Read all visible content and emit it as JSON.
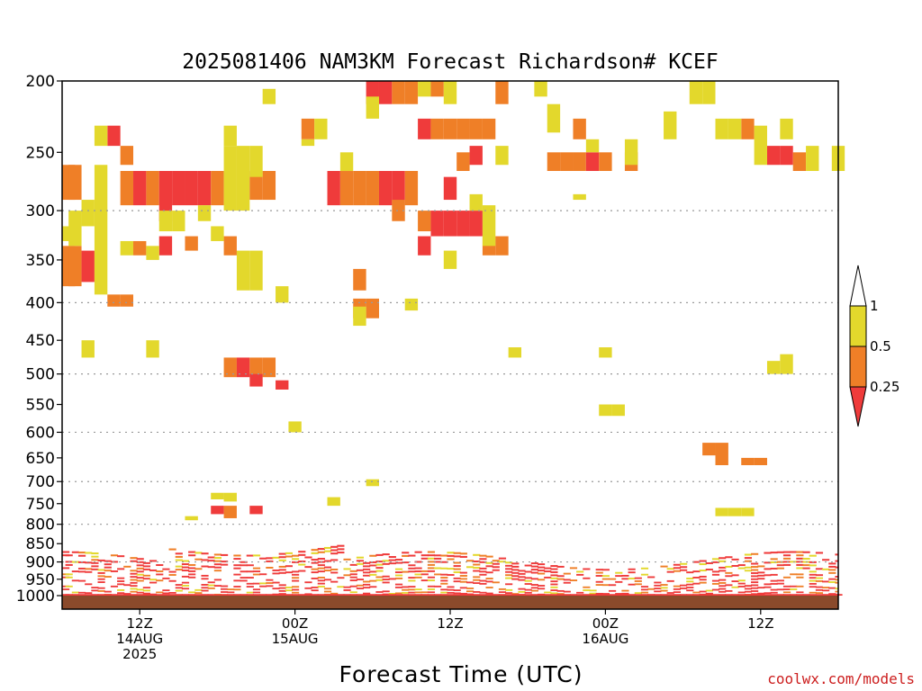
{
  "chart_data": {
    "type": "heatmap",
    "title": "2025081406 NAM3KM Forecast Richardson# KCEF",
    "xlabel": "Forecast Time (UTC)",
    "ylabel": "",
    "y_axis": {
      "scale": "log",
      "reversed": true,
      "lim": [
        1000,
        200
      ],
      "ticks": [
        200,
        250,
        300,
        350,
        400,
        450,
        500,
        550,
        600,
        650,
        700,
        750,
        800,
        850,
        900,
        950,
        1000
      ],
      "dotted_grid": [
        300,
        400,
        500,
        600,
        700,
        800,
        900
      ]
    },
    "x_axis": {
      "lim_hours": [
        6,
        66
      ],
      "ticks": [
        {
          "hour": 12,
          "labels": [
            "12Z",
            "14AUG",
            "2025"
          ]
        },
        {
          "hour": 24,
          "labels": [
            "00Z",
            "15AUG"
          ]
        },
        {
          "hour": 36,
          "labels": [
            "12Z"
          ]
        },
        {
          "hour": 48,
          "labels": [
            "00Z",
            "16AUG"
          ]
        },
        {
          "hour": 60,
          "labels": [
            "12Z"
          ]
        }
      ]
    },
    "colorbar": {
      "labels": [
        "1",
        "0.5",
        "0.25"
      ],
      "bins": [
        {
          "range": "0.5-1",
          "color": "#e3d82c"
        },
        {
          "range": "0.25-0.5",
          "color": "#ef7f27"
        },
        {
          "range": "<0.25",
          "color": "#ef3b3b"
        }
      ],
      "extend": "both"
    },
    "ground_color": "#8b4a2b",
    "cells": [
      {
        "t": 6,
        "p": [
          260,
          290
        ],
        "v": "orange"
      },
      {
        "t": 7,
        "p": [
          260,
          290
        ],
        "v": "orange"
      },
      {
        "t": 6,
        "p": [
          335,
          380
        ],
        "v": "orange"
      },
      {
        "t": 7,
        "p": [
          335,
          380
        ],
        "v": "orange"
      },
      {
        "t": 8,
        "p": [
          340,
          375
        ],
        "v": "red"
      },
      {
        "t": 9,
        "p": [
          260,
          390
        ],
        "v": "yellow"
      },
      {
        "t": 10,
        "p": [
          230,
          245
        ],
        "v": "red"
      },
      {
        "t": 10,
        "p": [
          390,
          405
        ],
        "v": "orange"
      },
      {
        "t": 11,
        "p": [
          245,
          260
        ],
        "v": "orange"
      },
      {
        "t": 11,
        "p": [
          390,
          405
        ],
        "v": "orange"
      },
      {
        "t": 11,
        "p": [
          265,
          295
        ],
        "v": "orange"
      },
      {
        "t": 12,
        "p": [
          265,
          295
        ],
        "v": "red"
      },
      {
        "t": 13,
        "p": [
          265,
          295
        ],
        "v": "orange"
      },
      {
        "t": 14,
        "p": [
          265,
          310
        ],
        "v": "red"
      },
      {
        "t": 15,
        "p": [
          265,
          295
        ],
        "v": "red"
      },
      {
        "t": 16,
        "p": [
          265,
          295
        ],
        "v": "red"
      },
      {
        "t": 17,
        "p": [
          265,
          295
        ],
        "v": "red"
      },
      {
        "t": 18,
        "p": [
          265,
          295
        ],
        "v": "orange"
      },
      {
        "t": 19,
        "p": [
          245,
          300
        ],
        "v": "yellow"
      },
      {
        "t": 20,
        "p": [
          245,
          300
        ],
        "v": "yellow"
      },
      {
        "t": 21,
        "p": [
          265,
          290
        ],
        "v": "orange"
      },
      {
        "t": 22,
        "p": [
          265,
          290
        ],
        "v": "orange"
      },
      {
        "t": 14,
        "p": [
          325,
          345
        ],
        "v": "red"
      },
      {
        "t": 16,
        "p": [
          325,
          340
        ],
        "v": "orange"
      },
      {
        "t": 19,
        "p": [
          325,
          345
        ],
        "v": "orange"
      },
      {
        "t": 20,
        "p": [
          340,
          385
        ],
        "v": "yellow"
      },
      {
        "t": 21,
        "p": [
          340,
          385
        ],
        "v": "yellow"
      },
      {
        "t": 19,
        "p": [
          475,
          505
        ],
        "v": "orange"
      },
      {
        "t": 20,
        "p": [
          475,
          505
        ],
        "v": "red"
      },
      {
        "t": 21,
        "p": [
          475,
          505
        ],
        "v": "orange"
      },
      {
        "t": 22,
        "p": [
          475,
          505
        ],
        "v": "orange"
      },
      {
        "t": 21,
        "p": [
          500,
          520
        ],
        "v": "red"
      },
      {
        "t": 23,
        "p": [
          510,
          525
        ],
        "v": "red"
      },
      {
        "t": 27,
        "p": [
          265,
          295
        ],
        "v": "red"
      },
      {
        "t": 28,
        "p": [
          265,
          295
        ],
        "v": "orange"
      },
      {
        "t": 29,
        "p": [
          265,
          295
        ],
        "v": "orange"
      },
      {
        "t": 30,
        "p": [
          265,
          295
        ],
        "v": "orange"
      },
      {
        "t": 31,
        "p": [
          265,
          295
        ],
        "v": "red"
      },
      {
        "t": 32,
        "p": [
          265,
          295
        ],
        "v": "red"
      },
      {
        "t": 33,
        "p": [
          265,
          295
        ],
        "v": "orange"
      },
      {
        "t": 29,
        "p": [
          360,
          385
        ],
        "v": "orange"
      },
      {
        "t": 29,
        "p": [
          395,
          420
        ],
        "v": "orange"
      },
      {
        "t": 30,
        "p": [
          395,
          420
        ],
        "v": "orange"
      },
      {
        "t": 30,
        "p": [
          200,
          215
        ],
        "v": "red"
      },
      {
        "t": 31,
        "p": [
          200,
          215
        ],
        "v": "red"
      },
      {
        "t": 32,
        "p": [
          200,
          215
        ],
        "v": "orange"
      },
      {
        "t": 33,
        "p": [
          200,
          215
        ],
        "v": "orange"
      },
      {
        "t": 34,
        "p": [
          225,
          240
        ],
        "v": "red"
      },
      {
        "t": 35,
        "p": [
          225,
          240
        ],
        "v": "orange"
      },
      {
        "t": 36,
        "p": [
          225,
          240
        ],
        "v": "orange"
      },
      {
        "t": 37,
        "p": [
          225,
          240
        ],
        "v": "orange"
      },
      {
        "t": 38,
        "p": [
          225,
          240
        ],
        "v": "orange"
      },
      {
        "t": 39,
        "p": [
          225,
          240
        ],
        "v": "orange"
      },
      {
        "t": 40,
        "p": [
          200,
          215
        ],
        "v": "orange"
      },
      {
        "t": 38,
        "p": [
          245,
          260
        ],
        "v": "red"
      },
      {
        "t": 37,
        "p": [
          250,
          265
        ],
        "v": "orange"
      },
      {
        "t": 36,
        "p": [
          270,
          290
        ],
        "v": "red"
      },
      {
        "t": 35,
        "p": [
          300,
          325
        ],
        "v": "red"
      },
      {
        "t": 36,
        "p": [
          300,
          325
        ],
        "v": "red"
      },
      {
        "t": 37,
        "p": [
          300,
          325
        ],
        "v": "red"
      },
      {
        "t": 38,
        "p": [
          300,
          325
        ],
        "v": "red"
      },
      {
        "t": 34,
        "p": [
          300,
          320
        ],
        "v": "orange"
      },
      {
        "t": 34,
        "p": [
          325,
          345
        ],
        "v": "red"
      },
      {
        "t": 39,
        "p": [
          325,
          345
        ],
        "v": "orange"
      },
      {
        "t": 40,
        "p": [
          325,
          345
        ],
        "v": "orange"
      },
      {
        "t": 44,
        "p": [
          250,
          265
        ],
        "v": "orange"
      },
      {
        "t": 45,
        "p": [
          250,
          265
        ],
        "v": "orange"
      },
      {
        "t": 46,
        "p": [
          250,
          265
        ],
        "v": "orange"
      },
      {
        "t": 47,
        "p": [
          250,
          265
        ],
        "v": "red"
      },
      {
        "t": 48,
        "p": [
          250,
          265
        ],
        "v": "orange"
      },
      {
        "t": 50,
        "p": [
          250,
          265
        ],
        "v": "orange"
      },
      {
        "t": 46,
        "p": [
          225,
          240
        ],
        "v": "orange"
      },
      {
        "t": 56,
        "p": [
          620,
          645
        ],
        "v": "orange"
      },
      {
        "t": 57,
        "p": [
          620,
          665
        ],
        "v": "orange"
      },
      {
        "t": 59,
        "p": [
          650,
          665
        ],
        "v": "orange"
      },
      {
        "t": 60,
        "p": [
          650,
          665
        ],
        "v": "orange"
      },
      {
        "t": 59,
        "p": [
          225,
          240
        ],
        "v": "orange"
      },
      {
        "t": 61,
        "p": [
          245,
          260
        ],
        "v": "red"
      },
      {
        "t": 62,
        "p": [
          245,
          260
        ],
        "v": "red"
      },
      {
        "t": 63,
        "p": [
          250,
          265
        ],
        "v": "orange"
      },
      {
        "t": 6,
        "p": [
          315,
          330
        ],
        "v": "yellow"
      },
      {
        "t": 7,
        "p": [
          300,
          335
        ],
        "v": "yellow"
      },
      {
        "t": 8,
        "p": [
          290,
          315
        ],
        "v": "yellow"
      },
      {
        "t": 9,
        "p": [
          230,
          245
        ],
        "v": "yellow"
      },
      {
        "t": 11,
        "p": [
          330,
          345
        ],
        "v": "yellow"
      },
      {
        "t": 12,
        "p": [
          330,
          345
        ],
        "v": "orange"
      },
      {
        "t": 13,
        "p": [
          335,
          350
        ],
        "v": "yellow"
      },
      {
        "t": 14,
        "p": [
          300,
          320
        ],
        "v": "yellow"
      },
      {
        "t": 15,
        "p": [
          300,
          320
        ],
        "v": "yellow"
      },
      {
        "t": 17,
        "p": [
          295,
          310
        ],
        "v": "yellow"
      },
      {
        "t": 18,
        "p": [
          315,
          330
        ],
        "v": "yellow"
      },
      {
        "t": 19,
        "p": [
          230,
          245
        ],
        "v": "yellow"
      },
      {
        "t": 21,
        "p": [
          245,
          270
        ],
        "v": "yellow"
      },
      {
        "t": 22,
        "p": [
          205,
          215
        ],
        "v": "yellow"
      },
      {
        "t": 23,
        "p": [
          380,
          400
        ],
        "v": "yellow"
      },
      {
        "t": 25,
        "p": [
          225,
          240
        ],
        "v": "orange"
      },
      {
        "t": 25,
        "p": [
          240,
          245
        ],
        "v": "yellow"
      },
      {
        "t": 26,
        "p": [
          225,
          240
        ],
        "v": "yellow"
      },
      {
        "t": 28,
        "p": [
          250,
          265
        ],
        "v": "yellow"
      },
      {
        "t": 29,
        "p": [
          405,
          430
        ],
        "v": "yellow"
      },
      {
        "t": 30,
        "p": [
          210,
          225
        ],
        "v": "yellow"
      },
      {
        "t": 32,
        "p": [
          290,
          310
        ],
        "v": "orange"
      },
      {
        "t": 33,
        "p": [
          395,
          410
        ],
        "v": "yellow"
      },
      {
        "t": 34,
        "p": [
          200,
          210
        ],
        "v": "yellow"
      },
      {
        "t": 35,
        "p": [
          200,
          210
        ],
        "v": "orange"
      },
      {
        "t": 36,
        "p": [
          200,
          215
        ],
        "v": "yellow"
      },
      {
        "t": 36,
        "p": [
          340,
          360
        ],
        "v": "yellow"
      },
      {
        "t": 38,
        "p": [
          285,
          300
        ],
        "v": "yellow"
      },
      {
        "t": 39,
        "p": [
          295,
          335
        ],
        "v": "yellow"
      },
      {
        "t": 40,
        "p": [
          245,
          260
        ],
        "v": "yellow"
      },
      {
        "t": 41,
        "p": [
          460,
          475
        ],
        "v": "yellow"
      },
      {
        "t": 43,
        "p": [
          200,
          210
        ],
        "v": "yellow"
      },
      {
        "t": 44,
        "p": [
          215,
          235
        ],
        "v": "yellow"
      },
      {
        "t": 46,
        "p": [
          285,
          290
        ],
        "v": "yellow"
      },
      {
        "t": 47,
        "p": [
          240,
          250
        ],
        "v": "yellow"
      },
      {
        "t": 48,
        "p": [
          460,
          475
        ],
        "v": "yellow"
      },
      {
        "t": 48,
        "p": [
          550,
          570
        ],
        "v": "yellow"
      },
      {
        "t": 49,
        "p": [
          550,
          570
        ],
        "v": "yellow"
      },
      {
        "t": 50,
        "p": [
          240,
          260
        ],
        "v": "yellow"
      },
      {
        "t": 53,
        "p": [
          220,
          240
        ],
        "v": "yellow"
      },
      {
        "t": 55,
        "p": [
          200,
          215
        ],
        "v": "yellow"
      },
      {
        "t": 56,
        "p": [
          200,
          215
        ],
        "v": "yellow"
      },
      {
        "t": 57,
        "p": [
          225,
          240
        ],
        "v": "yellow"
      },
      {
        "t": 58,
        "p": [
          225,
          240
        ],
        "v": "yellow"
      },
      {
        "t": 60,
        "p": [
          230,
          260
        ],
        "v": "yellow"
      },
      {
        "t": 62,
        "p": [
          225,
          240
        ],
        "v": "yellow"
      },
      {
        "t": 62,
        "p": [
          470,
          500
        ],
        "v": "yellow"
      },
      {
        "t": 61,
        "p": [
          480,
          500
        ],
        "v": "yellow"
      },
      {
        "t": 64,
        "p": [
          245,
          265
        ],
        "v": "yellow"
      },
      {
        "t": 66,
        "p": [
          245,
          265
        ],
        "v": "yellow"
      },
      {
        "t": 13,
        "p": [
          450,
          475
        ],
        "v": "yellow"
      },
      {
        "t": 8,
        "p": [
          450,
          475
        ],
        "v": "yellow"
      },
      {
        "t": 24,
        "p": [
          580,
          600
        ],
        "v": "yellow"
      },
      {
        "t": 30,
        "p": [
          695,
          710
        ],
        "v": "yellow"
      },
      {
        "t": 18,
        "p": [
          725,
          740
        ],
        "v": "yellow"
      },
      {
        "t": 19,
        "p": [
          725,
          745
        ],
        "v": "yellow"
      },
      {
        "t": 18,
        "p": [
          755,
          775
        ],
        "v": "red"
      },
      {
        "t": 19,
        "p": [
          755,
          785
        ],
        "v": "orange"
      },
      {
        "t": 21,
        "p": [
          755,
          775
        ],
        "v": "red"
      },
      {
        "t": 57,
        "p": [
          760,
          780
        ],
        "v": "yellow"
      },
      {
        "t": 58,
        "p": [
          760,
          780
        ],
        "v": "yellow"
      },
      {
        "t": 59,
        "p": [
          760,
          780
        ],
        "v": "yellow"
      },
      {
        "t": 27,
        "p": [
          735,
          755
        ],
        "v": "yellow"
      },
      {
        "t": 16,
        "p": [
          780,
          790
        ],
        "v": "yellow"
      }
    ]
  },
  "credit": "coolwx.com/models"
}
